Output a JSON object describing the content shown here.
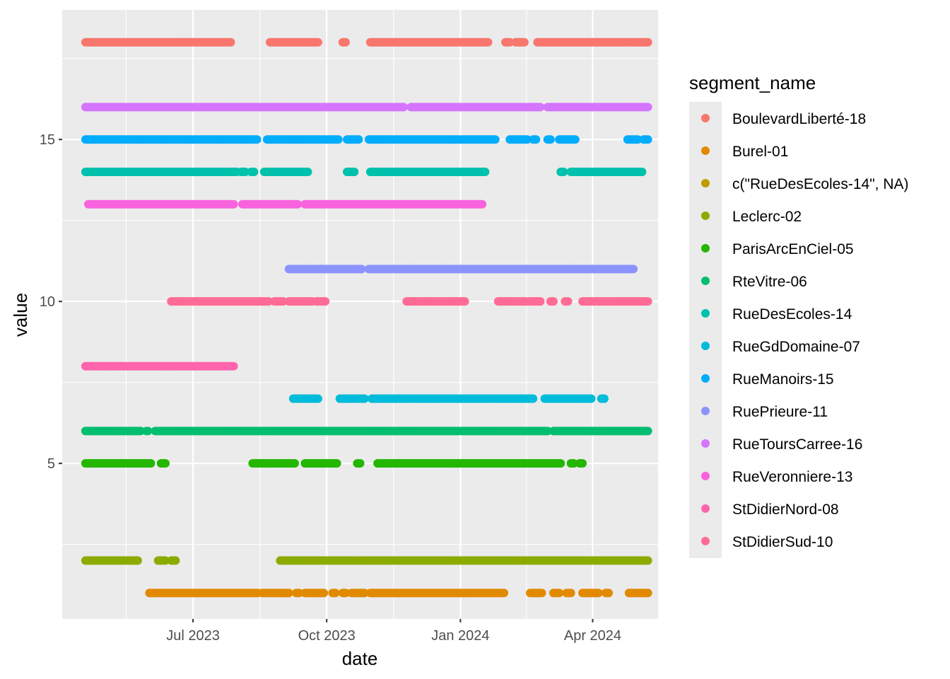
{
  "chart_data": {
    "type": "scatter",
    "title": "",
    "xlabel": "date",
    "ylabel": "value",
    "x_axis_type": "date",
    "xlim": [
      "2023-04-02",
      "2024-05-16"
    ],
    "ylim": [
      0.2,
      19.0
    ],
    "x_ticks": [
      {
        "date": "2023-07-01",
        "label": "Jul 2023"
      },
      {
        "date": "2023-10-01",
        "label": "Oct 2023"
      },
      {
        "date": "2024-01-01",
        "label": "Jan 2024"
      },
      {
        "date": "2024-04-01",
        "label": "Apr 2024"
      }
    ],
    "y_ticks": [
      5,
      10,
      15
    ],
    "grid": true,
    "legend": {
      "title": "segment_name",
      "position": "right"
    },
    "series": [
      {
        "name": "BoulevardLiberté-18",
        "color": "#F8766D",
        "y": 18,
        "ranges": [
          [
            "2023-04-18",
            "2023-07-27"
          ],
          [
            "2023-08-23",
            "2023-09-25"
          ],
          [
            "2023-10-12",
            "2023-10-14"
          ],
          [
            "2023-10-31",
            "2024-01-20"
          ],
          [
            "2024-02-01",
            "2024-02-04"
          ],
          [
            "2024-02-08",
            "2024-02-14"
          ],
          [
            "2024-02-23",
            "2024-05-09"
          ]
        ]
      },
      {
        "name": "Burel-01",
        "color": "#E18A00",
        "y": 1,
        "ranges": [
          [
            "2023-06-01",
            "2023-08-15"
          ],
          [
            "2023-08-18",
            "2023-09-05"
          ],
          [
            "2023-09-10",
            "2023-09-12"
          ],
          [
            "2023-09-16",
            "2023-09-29"
          ],
          [
            "2023-10-05",
            "2023-10-07"
          ],
          [
            "2023-10-12",
            "2023-10-14"
          ],
          [
            "2023-10-18",
            "2023-10-27"
          ],
          [
            "2023-10-31",
            "2024-01-31"
          ],
          [
            "2024-02-18",
            "2024-02-26"
          ],
          [
            "2024-03-05",
            "2024-03-09"
          ],
          [
            "2024-03-14",
            "2024-03-17"
          ],
          [
            "2024-03-25",
            "2024-04-05"
          ],
          [
            "2024-04-10",
            "2024-04-12"
          ],
          [
            "2024-04-26",
            "2024-05-09"
          ]
        ]
      },
      {
        "name": "c(\"RueDesEcoles-14\", NA)",
        "color": "#BE9C00",
        "y": null,
        "ranges": []
      },
      {
        "name": "Leclerc-02",
        "color": "#8CAB00",
        "y": 2,
        "ranges": [
          [
            "2023-04-18",
            "2023-05-24"
          ],
          [
            "2023-06-07",
            "2023-06-12"
          ],
          [
            "2023-06-16",
            "2023-06-19"
          ],
          [
            "2023-08-30",
            "2024-05-09"
          ]
        ]
      },
      {
        "name": "ParisArcEnCiel-05",
        "color": "#24B700",
        "y": 5,
        "ranges": [
          [
            "2023-04-18",
            "2023-06-02"
          ],
          [
            "2023-06-09",
            "2023-06-12"
          ],
          [
            "2023-08-11",
            "2023-09-09"
          ],
          [
            "2023-09-16",
            "2023-10-08"
          ],
          [
            "2023-10-22",
            "2023-10-24"
          ],
          [
            "2023-11-05",
            "2024-03-10"
          ],
          [
            "2024-03-17",
            "2024-03-19"
          ],
          [
            "2024-03-23",
            "2024-03-25"
          ]
        ]
      },
      {
        "name": "RteVitre-06",
        "color": "#00BE70",
        "y": 6,
        "ranges": [
          [
            "2023-04-18",
            "2023-05-26"
          ],
          [
            "2023-05-30",
            "2023-05-31"
          ],
          [
            "2023-06-05",
            "2023-12-31"
          ],
          [
            "2024-01-02",
            "2024-03-01"
          ],
          [
            "2024-03-05",
            "2024-05-09"
          ]
        ]
      },
      {
        "name": "RueDesEcoles-14",
        "color": "#00C1AB",
        "y": 14,
        "ranges": [
          [
            "2023-04-18",
            "2023-07-31"
          ],
          [
            "2023-08-03",
            "2023-08-06"
          ],
          [
            "2023-08-10",
            "2023-08-12"
          ],
          [
            "2023-08-19",
            "2023-09-18"
          ],
          [
            "2023-10-15",
            "2023-10-20"
          ],
          [
            "2023-10-31",
            "2024-01-18"
          ],
          [
            "2024-03-10",
            "2024-03-12"
          ],
          [
            "2024-03-17",
            "2024-05-05"
          ]
        ]
      },
      {
        "name": "RueGdDomaine-07",
        "color": "#00BBDA",
        "y": 7,
        "ranges": [
          [
            "2023-09-08",
            "2023-09-25"
          ],
          [
            "2023-10-10",
            "2023-10-27"
          ],
          [
            "2023-11-01",
            "2024-02-20"
          ],
          [
            "2024-02-28",
            "2024-03-31"
          ],
          [
            "2024-04-07",
            "2024-04-09"
          ]
        ]
      },
      {
        "name": "RueManoirs-15",
        "color": "#00ACFC",
        "y": 15,
        "ranges": [
          [
            "2023-04-18",
            "2023-08-14"
          ],
          [
            "2023-08-21",
            "2023-10-09"
          ],
          [
            "2023-10-15",
            "2023-10-23"
          ],
          [
            "2023-10-30",
            "2024-01-25"
          ],
          [
            "2024-02-04",
            "2024-02-16"
          ],
          [
            "2024-02-20",
            "2024-02-22"
          ],
          [
            "2024-03-01",
            "2024-03-03"
          ],
          [
            "2024-03-09",
            "2024-03-20"
          ],
          [
            "2024-04-25",
            "2024-05-02"
          ],
          [
            "2024-05-06",
            "2024-05-09"
          ]
        ]
      },
      {
        "name": "RuePrieure-11",
        "color": "#8B93FF",
        "y": 11,
        "ranges": [
          [
            "2023-09-05",
            "2023-10-25"
          ],
          [
            "2023-10-30",
            "2024-04-29"
          ]
        ]
      },
      {
        "name": "RueToursCarree-16",
        "color": "#D575FE",
        "y": 16,
        "ranges": [
          [
            "2023-04-18",
            "2023-11-23"
          ],
          [
            "2023-11-28",
            "2024-02-25"
          ],
          [
            "2024-03-01",
            "2024-05-09"
          ]
        ]
      },
      {
        "name": "RueVeronniere-13",
        "color": "#F962DD",
        "y": 13,
        "ranges": [
          [
            "2023-04-20",
            "2023-07-29"
          ],
          [
            "2023-08-04",
            "2023-09-11"
          ],
          [
            "2023-09-16",
            "2024-01-16"
          ]
        ]
      },
      {
        "name": "StDidierNord-08",
        "color": "#FF65AC",
        "y": 8,
        "ranges": [
          [
            "2023-04-18",
            "2023-07-29"
          ]
        ]
      },
      {
        "name": "StDidierSud-10",
        "color": "#FF6B94",
        "y": 10,
        "ranges": [
          [
            "2023-06-16",
            "2023-08-22"
          ],
          [
            "2023-08-26",
            "2023-09-01"
          ],
          [
            "2023-09-05",
            "2023-09-21"
          ],
          [
            "2023-09-24",
            "2023-09-30"
          ],
          [
            "2023-11-25",
            "2024-01-04"
          ],
          [
            "2024-01-27",
            "2024-02-15"
          ],
          [
            "2024-02-17",
            "2024-02-25"
          ],
          [
            "2024-03-03",
            "2024-03-05"
          ],
          [
            "2024-03-13",
            "2024-03-15"
          ],
          [
            "2024-03-25",
            "2024-05-09"
          ]
        ]
      }
    ]
  }
}
